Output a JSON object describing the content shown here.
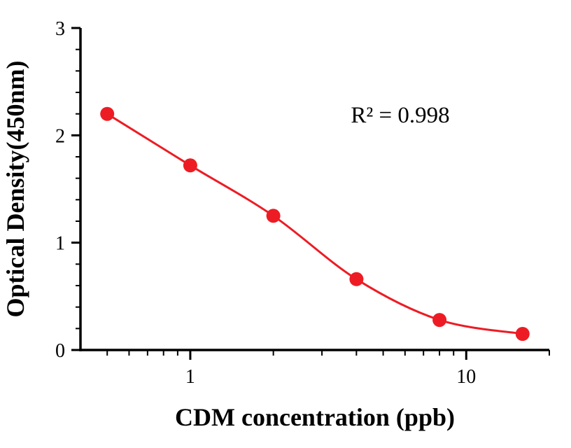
{
  "chart_data": {
    "type": "scatter",
    "title": "",
    "xlabel": "CDM concentration (ppb)",
    "ylabel": "Optical Density(450nm)",
    "annotation": "R² = 0.998",
    "x_scale": "log",
    "x_range": [
      0.4,
      20
    ],
    "y_range": [
      0,
      3
    ],
    "x_major_ticks": [
      1,
      10
    ],
    "x_major_labels": [
      "1",
      "10"
    ],
    "x_minor_ticks": [
      0.5,
      0.6,
      0.7,
      0.8,
      0.9,
      2,
      3,
      4,
      5,
      6,
      7,
      8,
      9,
      20
    ],
    "y_major_ticks": [
      0,
      1,
      2,
      3
    ],
    "y_minor_step": 0.2,
    "legend": "none",
    "grid": "off",
    "points": [
      {
        "x": 0.5,
        "y": 2.2
      },
      {
        "x": 1,
        "y": 1.72
      },
      {
        "x": 2,
        "y": 1.25
      },
      {
        "x": 4,
        "y": 0.66
      },
      {
        "x": 8,
        "y": 0.28
      },
      {
        "x": 16,
        "y": 0.15
      }
    ],
    "colors": {
      "curve": "#ed1c24",
      "points": "#ed1c24",
      "axis": "#000000",
      "text": "#000000"
    }
  }
}
